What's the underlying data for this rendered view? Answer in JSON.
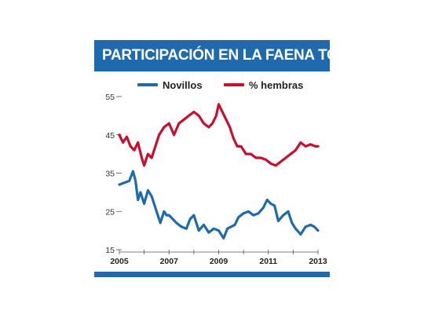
{
  "title": "PARTICIPACIÓN EN LA FAENA TOTAL",
  "colors": {
    "title_bar": "#1f6aad",
    "novillos": "#1f6aad",
    "hembras": "#c8102e"
  },
  "chart_data": {
    "type": "line",
    "title": "PARTICIPACIÓN EN LA FAENA TOTAL",
    "xlabel": "",
    "ylabel": "",
    "xlim": [
      2005,
      2013
    ],
    "ylim": [
      15,
      55
    ],
    "yticks": [
      15,
      25,
      35,
      45,
      55
    ],
    "xticks": [
      2005,
      2007,
      2009,
      2011,
      2013
    ],
    "y_tick_labels": [
      "15",
      "25",
      "35",
      "45",
      "55"
    ],
    "x_tick_labels": [
      "2005",
      "2007",
      "2009",
      "2011",
      "2013"
    ],
    "grid": false,
    "legend_position": "top",
    "series": [
      {
        "name": "Novillos",
        "color": "#1f6aad",
        "x": [
          2005.0,
          2005.2,
          2005.4,
          2005.55,
          2005.65,
          2005.75,
          2005.85,
          2006.0,
          2006.15,
          2006.3,
          2006.5,
          2006.65,
          2006.8,
          2006.9,
          2007.0,
          2007.15,
          2007.3,
          2007.5,
          2007.7,
          2007.85,
          2008.0,
          2008.2,
          2008.4,
          2008.6,
          2008.8,
          2009.0,
          2009.2,
          2009.35,
          2009.5,
          2009.65,
          2009.8,
          2010.0,
          2010.2,
          2010.4,
          2010.6,
          2010.8,
          2010.95,
          2011.1,
          2011.25,
          2011.4,
          2011.6,
          2011.8,
          2011.95,
          2012.1,
          2012.3,
          2012.5,
          2012.7,
          2012.85,
          2013.0
        ],
        "y": [
          32,
          32.5,
          33,
          35.5,
          33,
          28,
          30,
          27,
          30.5,
          29,
          25,
          22,
          25,
          24,
          24,
          23,
          22,
          21,
          20.5,
          23,
          24,
          20,
          21.5,
          19.5,
          20.5,
          20,
          18,
          20.5,
          21,
          21.5,
          23.5,
          24.5,
          25,
          24,
          24.5,
          26,
          28,
          27,
          26.5,
          22.5,
          24,
          25,
          22,
          20.5,
          19,
          21,
          21.5,
          21,
          20
        ]
      },
      {
        "name": "% hembras",
        "color": "#c8102e",
        "x": [
          2005.0,
          2005.15,
          2005.3,
          2005.45,
          2005.6,
          2005.75,
          2005.9,
          2006.0,
          2006.15,
          2006.3,
          2006.45,
          2006.6,
          2006.8,
          2007.0,
          2007.2,
          2007.4,
          2007.6,
          2007.8,
          2008.0,
          2008.2,
          2008.4,
          2008.6,
          2008.75,
          2008.9,
          2009.0,
          2009.15,
          2009.3,
          2009.45,
          2009.6,
          2009.75,
          2009.9,
          2010.1,
          2010.3,
          2010.5,
          2010.7,
          2010.9,
          2011.1,
          2011.3,
          2011.5,
          2011.7,
          2011.9,
          2012.1,
          2012.3,
          2012.5,
          2012.7,
          2012.9,
          2013.0
        ],
        "y": [
          45,
          43,
          44.5,
          42,
          41,
          43,
          39,
          37,
          40,
          39,
          42,
          45,
          47,
          48,
          45,
          48,
          49,
          50,
          51,
          50,
          48,
          47,
          48,
          50,
          53,
          51,
          49,
          47,
          44,
          42,
          42,
          40,
          40,
          39,
          39,
          38.5,
          37.5,
          37,
          38,
          39,
          40,
          41,
          43,
          42,
          42.5,
          42,
          42
        ]
      }
    ]
  }
}
